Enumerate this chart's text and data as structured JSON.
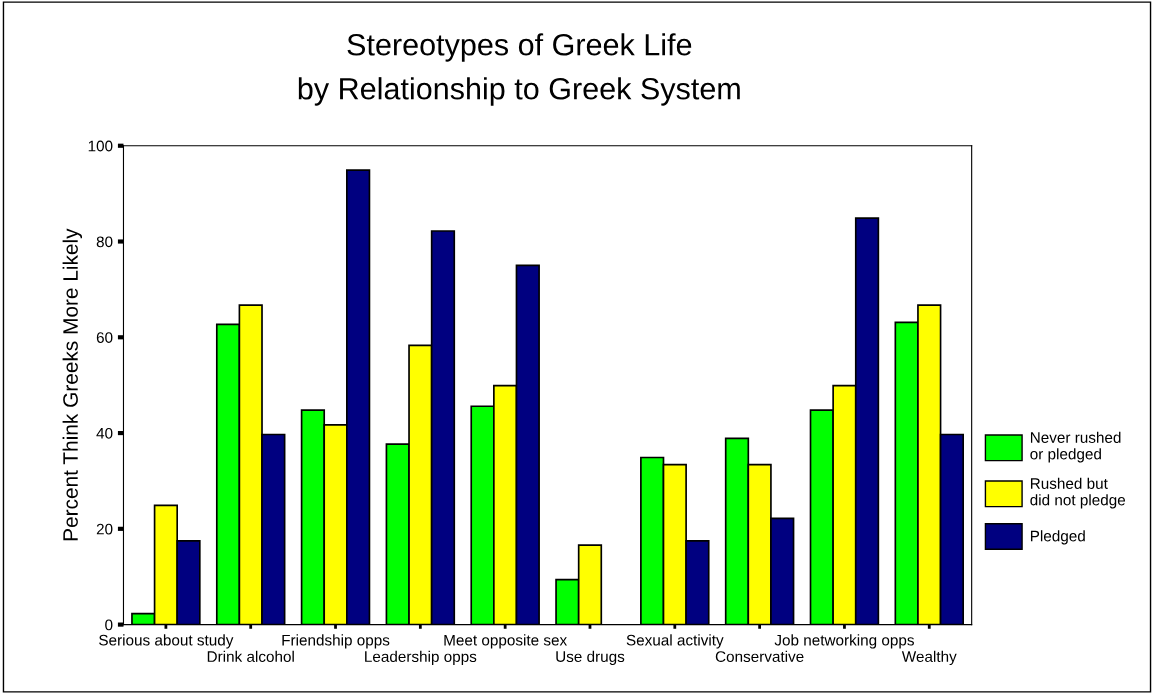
{
  "chart_data": {
    "type": "bar",
    "title": "Stereotypes of Greek Life\nby Relationship to Greek System",
    "ylabel": "Percent Think Greeks More Likely",
    "categories": [
      "Serious about study",
      "Drink alcohol",
      "Friendship opps",
      "Leadership opps",
      "Meet opposite sex",
      "Use drugs",
      "Sexual activity",
      "Conservative",
      "Job networking opps",
      "Wealthy"
    ],
    "series": [
      {
        "name": "Never rushed\nor pledged",
        "color": "#00ff00",
        "values": [
          2.3,
          62.7,
          44.8,
          37.7,
          45.6,
          9.4,
          34.9,
          38.9,
          44.8,
          63.1
        ]
      },
      {
        "name": "Rushed but\ndid not pledge",
        "color": "#ffff00",
        "values": [
          24.9,
          66.7,
          41.7,
          58.3,
          49.9,
          16.6,
          33.4,
          33.4,
          49.9,
          66.7
        ]
      },
      {
        "name": "Pledged",
        "color": "#000080",
        "values": [
          17.5,
          39.7,
          94.9,
          82.2,
          75.0,
          null,
          17.5,
          22.2,
          84.9,
          39.7
        ]
      }
    ],
    "ylim": [
      0,
      100
    ],
    "yticks": [
      0,
      20,
      40,
      60,
      80,
      100
    ],
    "grid": false,
    "legend": "right"
  }
}
